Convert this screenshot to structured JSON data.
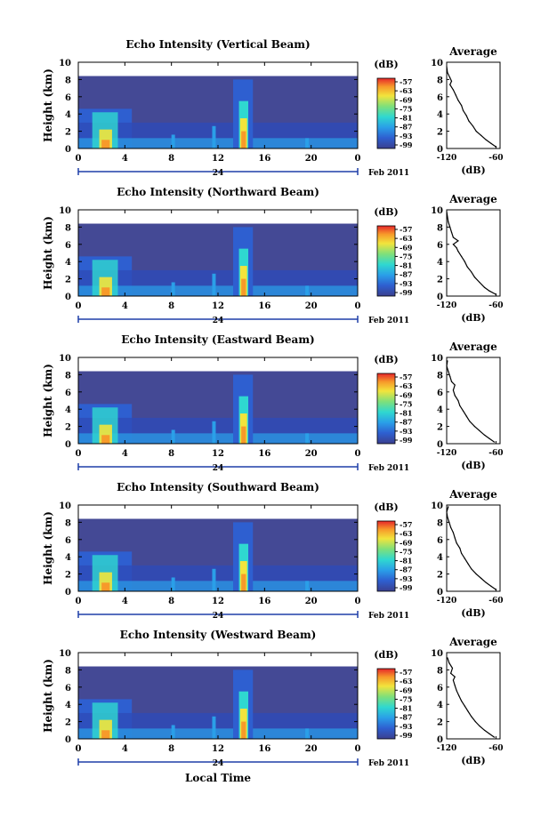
{
  "chart_data": [
    {
      "type": "heatmap",
      "title": "Echo Intensity (Vertical Beam)",
      "ylabel": "Height (km)",
      "y_ticks": [
        "0",
        "2",
        "4",
        "6",
        "8",
        "10"
      ],
      "x_ticks": [
        "0",
        "4",
        "8",
        "12",
        "16",
        "20",
        "0"
      ],
      "date_day": "24",
      "date_label": "Feb 2011",
      "colorbar_unit": "(dB)",
      "colorbar_ticks": [
        "-57",
        "-63",
        "-69",
        "-75",
        "-81",
        "-87",
        "-93",
        "-99"
      ],
      "profile": {
        "title": "Average",
        "xlabel": "(dB)",
        "x_ticks": [
          "-120",
          "-60"
        ],
        "y_ticks": [
          "0",
          "2",
          "4",
          "6",
          "8",
          "10"
        ],
        "xlim": [
          -120,
          -55
        ],
        "ylim": [
          0,
          10
        ],
        "points": [
          [
            -60,
            0.2
          ],
          [
            -66,
            0.6
          ],
          [
            -72,
            1.0
          ],
          [
            -78,
            1.5
          ],
          [
            -84,
            2.0
          ],
          [
            -88,
            2.6
          ],
          [
            -93,
            3.2
          ],
          [
            -96,
            3.8
          ],
          [
            -100,
            4.4
          ],
          [
            -102,
            5.0
          ],
          [
            -106,
            5.6
          ],
          [
            -109,
            6.2
          ],
          [
            -112,
            6.8
          ],
          [
            -116,
            7.4
          ],
          [
            -114,
            7.8
          ],
          [
            -116,
            8.2
          ],
          [
            -119,
            8.8
          ],
          [
            -120,
            9.5
          ]
        ]
      }
    },
    {
      "type": "heatmap",
      "title": "Echo Intensity (Northward Beam)",
      "ylabel": "Height (km)",
      "y_ticks": [
        "0",
        "2",
        "4",
        "6",
        "8",
        "10"
      ],
      "x_ticks": [
        "0",
        "4",
        "8",
        "12",
        "16",
        "20",
        "0"
      ],
      "date_day": "24",
      "date_label": "Feb 2011",
      "colorbar_unit": "(dB)",
      "colorbar_ticks": [
        "-57",
        "-63",
        "-69",
        "-75",
        "-81",
        "-87",
        "-93",
        "-99"
      ],
      "profile": {
        "title": "Average",
        "xlabel": "(dB)",
        "x_ticks": [
          "-120",
          "-60"
        ],
        "y_ticks": [
          "0",
          "2",
          "4",
          "6",
          "8",
          "10"
        ],
        "xlim": [
          -120,
          -55
        ],
        "ylim": [
          0,
          10
        ],
        "points": [
          [
            -60,
            0.2
          ],
          [
            -68,
            0.6
          ],
          [
            -74,
            1.0
          ],
          [
            -80,
            1.6
          ],
          [
            -86,
            2.2
          ],
          [
            -90,
            2.8
          ],
          [
            -95,
            3.4
          ],
          [
            -98,
            4.0
          ],
          [
            -102,
            4.6
          ],
          [
            -106,
            5.2
          ],
          [
            -108,
            5.6
          ],
          [
            -112,
            6.0
          ],
          [
            -106,
            6.4
          ],
          [
            -112,
            6.8
          ],
          [
            -114,
            7.4
          ],
          [
            -116,
            8.0
          ],
          [
            -118,
            8.6
          ],
          [
            -119,
            9.2
          ],
          [
            -120,
            9.8
          ]
        ]
      }
    },
    {
      "type": "heatmap",
      "title": "Echo Intensity (Eastward Beam)",
      "ylabel": "Height (km)",
      "y_ticks": [
        "0",
        "2",
        "4",
        "6",
        "8",
        "10"
      ],
      "x_ticks": [
        "0",
        "4",
        "8",
        "12",
        "16",
        "20",
        "0"
      ],
      "date_day": "24",
      "date_label": "Feb 2011",
      "colorbar_unit": "(dB)",
      "colorbar_ticks": [
        "-57",
        "-63",
        "-69",
        "-75",
        "-81",
        "-87",
        "-93",
        "-99"
      ],
      "profile": {
        "title": "Average",
        "xlabel": "(dB)",
        "x_ticks": [
          "-120",
          "-60"
        ],
        "y_ticks": [
          "0",
          "2",
          "4",
          "6",
          "8",
          "10"
        ],
        "xlim": [
          -120,
          -55
        ],
        "ylim": [
          0,
          10
        ],
        "points": [
          [
            -62,
            0.2
          ],
          [
            -68,
            0.6
          ],
          [
            -74,
            1.0
          ],
          [
            -80,
            1.5
          ],
          [
            -86,
            2.0
          ],
          [
            -92,
            2.6
          ],
          [
            -96,
            3.2
          ],
          [
            -100,
            3.8
          ],
          [
            -104,
            4.4
          ],
          [
            -106,
            5.0
          ],
          [
            -110,
            5.6
          ],
          [
            -112,
            6.2
          ],
          [
            -110,
            6.8
          ],
          [
            -114,
            7.2
          ],
          [
            -116,
            7.8
          ],
          [
            -118,
            8.4
          ],
          [
            -120,
            9.0
          ],
          [
            -119,
            9.6
          ]
        ]
      }
    },
    {
      "type": "heatmap",
      "title": "Echo Intensity (Southward Beam)",
      "ylabel": "Height (km)",
      "y_ticks": [
        "0",
        "2",
        "4",
        "6",
        "8",
        "10"
      ],
      "x_ticks": [
        "0",
        "4",
        "8",
        "12",
        "16",
        "20",
        "0"
      ],
      "date_day": "24",
      "date_label": "Feb 2011",
      "colorbar_unit": "(dB)",
      "colorbar_ticks": [
        "-57",
        "-63",
        "-69",
        "-75",
        "-81",
        "-87",
        "-93",
        "-99"
      ],
      "profile": {
        "title": "Average",
        "xlabel": "(dB)",
        "x_ticks": [
          "-120",
          "-60"
        ],
        "y_ticks": [
          "0",
          "2",
          "4",
          "6",
          "8",
          "10"
        ],
        "xlim": [
          -120,
          -55
        ],
        "ylim": [
          0,
          10
        ],
        "points": [
          [
            -60,
            0.2
          ],
          [
            -66,
            0.6
          ],
          [
            -72,
            1.0
          ],
          [
            -78,
            1.5
          ],
          [
            -84,
            2.0
          ],
          [
            -90,
            2.6
          ],
          [
            -94,
            3.2
          ],
          [
            -98,
            3.8
          ],
          [
            -102,
            4.4
          ],
          [
            -104,
            5.0
          ],
          [
            -108,
            5.6
          ],
          [
            -110,
            6.2
          ],
          [
            -112,
            6.8
          ],
          [
            -115,
            7.4
          ],
          [
            -117,
            8.0
          ],
          [
            -119,
            8.6
          ],
          [
            -120,
            9.2
          ],
          [
            -118,
            9.8
          ]
        ]
      }
    },
    {
      "type": "heatmap",
      "title": "Echo Intensity (Westward Beam)",
      "ylabel": "Height (km)",
      "xlabel": "Local Time",
      "y_ticks": [
        "0",
        "2",
        "4",
        "6",
        "8",
        "10"
      ],
      "x_ticks": [
        "0",
        "4",
        "8",
        "12",
        "16",
        "20",
        "0"
      ],
      "date_day": "24",
      "date_label": "Feb 2011",
      "colorbar_unit": "(dB)",
      "colorbar_ticks": [
        "-57",
        "-63",
        "-69",
        "-75",
        "-81",
        "-87",
        "-93",
        "-99"
      ],
      "profile": {
        "title": "Average",
        "xlabel": "(dB)",
        "x_ticks": [
          "-120",
          "-60"
        ],
        "y_ticks": [
          "0",
          "2",
          "4",
          "6",
          "8",
          "10"
        ],
        "xlim": [
          -120,
          -55
        ],
        "ylim": [
          0,
          10
        ],
        "points": [
          [
            -62,
            0.2
          ],
          [
            -68,
            0.6
          ],
          [
            -74,
            1.0
          ],
          [
            -80,
            1.5
          ],
          [
            -85,
            2.0
          ],
          [
            -90,
            2.6
          ],
          [
            -94,
            3.2
          ],
          [
            -98,
            3.8
          ],
          [
            -102,
            4.4
          ],
          [
            -105,
            5.0
          ],
          [
            -108,
            5.6
          ],
          [
            -110,
            6.2
          ],
          [
            -112,
            6.8
          ],
          [
            -110,
            7.2
          ],
          [
            -115,
            7.6
          ],
          [
            -113,
            8.2
          ],
          [
            -117,
            8.8
          ],
          [
            -119,
            9.4
          ]
        ]
      }
    }
  ]
}
